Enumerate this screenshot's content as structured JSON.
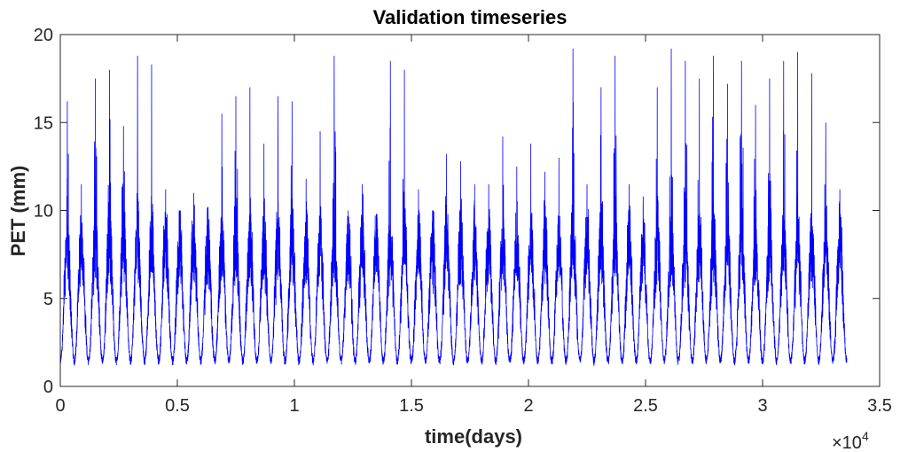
{
  "chart_data": {
    "type": "line",
    "title": "Validation timeseries",
    "xlabel": "time(days)",
    "ylabel": "PET (mm)",
    "x_multiplier": {
      "base": "×10",
      "exponent": "4"
    },
    "xlim": [
      0,
      3.5
    ],
    "ylim": [
      0,
      20
    ],
    "x_ticks": [
      {
        "value": 0,
        "label": "0"
      },
      {
        "value": 0.5,
        "label": "0.5"
      },
      {
        "value": 1,
        "label": "1"
      },
      {
        "value": 1.5,
        "label": "1.5"
      },
      {
        "value": 2,
        "label": "2"
      },
      {
        "value": 2.5,
        "label": "2.5"
      },
      {
        "value": 3,
        "label": "3"
      },
      {
        "value": 3.5,
        "label": "3.5"
      }
    ],
    "y_ticks": [
      {
        "value": 0,
        "label": "0"
      },
      {
        "value": 5,
        "label": "5"
      },
      {
        "value": 10,
        "label": "10"
      },
      {
        "value": 15,
        "label": "15"
      },
      {
        "value": 20,
        "label": "20"
      }
    ],
    "grid": false,
    "series": [
      {
        "color": "#0000ff",
        "x_extent": [
          0,
          3.36
        ],
        "baseline_min": 1.2,
        "annual_peaks": [
          16.2,
          11.5,
          17.5,
          18.0,
          14.8,
          18.8,
          18.3,
          11.2,
          10.0,
          11.0,
          10.2,
          15.5,
          16.5,
          17.0,
          13.8,
          16.5,
          16.2,
          11.8,
          14.5,
          18.8,
          10.0,
          11.5,
          9.8,
          18.5,
          18.0,
          11.2,
          10.0,
          13.2,
          12.8,
          11.5,
          11.5,
          14.2,
          12.5,
          13.8,
          12.2,
          13.0,
          19.2,
          11.5,
          17.0,
          18.8,
          11.5,
          10.8,
          17.0,
          19.2,
          18.5,
          17.5,
          18.8,
          17.2,
          18.5,
          16.0,
          17.5,
          18.5,
          19.0,
          17.8,
          15.0,
          11.2
        ]
      }
    ]
  }
}
